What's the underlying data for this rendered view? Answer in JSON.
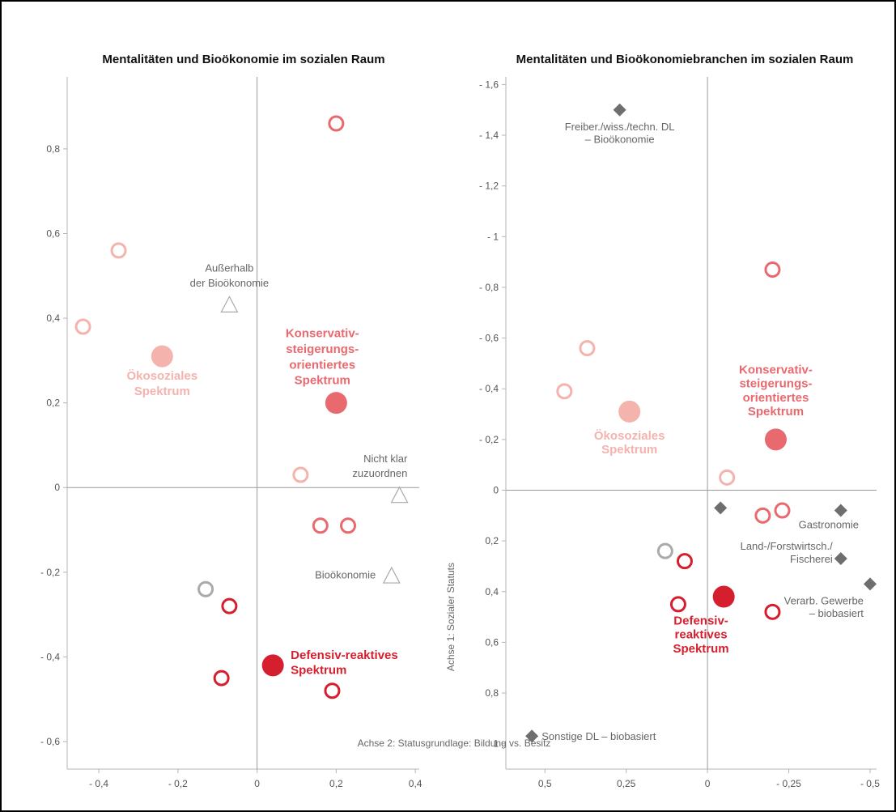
{
  "colors": {
    "light": "#f4b3ad",
    "mid": "#e86a6f",
    "dark": "#d61f2e",
    "gray": "#aaaaaa",
    "diamond": "#6e6e6e",
    "axis": "#9a9a9a",
    "frame": "#b4b4b4"
  },
  "chart_data": [
    {
      "type": "scatter",
      "title": "Mentalitäten und Bioökonomie im sozialen Raum",
      "xlim": [
        -0.48,
        0.41
      ],
      "ylim": [
        -0.665,
        0.97
      ],
      "x_ticks": [
        -0.4,
        -0.2,
        0,
        0.2,
        0.4
      ],
      "x_tick_labels": [
        "- 0,4",
        "- 0,2",
        "0",
        "0,2",
        "0,4"
      ],
      "y_ticks": [
        0.8,
        0.6,
        0.4,
        0.2,
        0,
        -0.2,
        -0.4,
        -0.6
      ],
      "y_tick_labels": [
        "0,8",
        "0,6",
        "0,4",
        "0,2",
        "0",
        "- 0,2",
        "- 0,4",
        "- 0,6"
      ],
      "points": [
        {
          "x": 0.2,
          "y": 0.86,
          "style": "ring",
          "color": "mid"
        },
        {
          "x": -0.35,
          "y": 0.56,
          "style": "ring",
          "color": "light"
        },
        {
          "x": -0.44,
          "y": 0.38,
          "style": "ring",
          "color": "light"
        },
        {
          "x": 0.11,
          "y": 0.03,
          "style": "ring",
          "color": "light"
        },
        {
          "x": 0.16,
          "y": -0.09,
          "style": "ring",
          "color": "mid"
        },
        {
          "x": 0.23,
          "y": -0.09,
          "style": "ring",
          "color": "mid"
        },
        {
          "x": -0.13,
          "y": -0.24,
          "style": "ring",
          "color": "gray"
        },
        {
          "x": -0.07,
          "y": -0.28,
          "style": "ring",
          "color": "dark"
        },
        {
          "x": -0.09,
          "y": -0.45,
          "style": "ring",
          "color": "dark"
        },
        {
          "x": 0.19,
          "y": -0.48,
          "style": "ring",
          "color": "dark"
        },
        {
          "x": -0.24,
          "y": 0.31,
          "style": "dot",
          "color": "light"
        },
        {
          "x": 0.2,
          "y": 0.2,
          "style": "dot",
          "color": "mid"
        },
        {
          "x": 0.04,
          "y": -0.42,
          "style": "dot",
          "color": "dark"
        },
        {
          "x": -0.07,
          "y": 0.43,
          "style": "triangle",
          "color": "gray"
        },
        {
          "x": 0.36,
          "y": -0.02,
          "style": "triangle",
          "color": "gray"
        },
        {
          "x": 0.34,
          "y": -0.21,
          "style": "triangle",
          "color": "gray"
        }
      ],
      "labels": [
        {
          "text": "Außerhalb",
          "x": -0.07,
          "y": 0.51,
          "anchor": "middle",
          "kind": "gray"
        },
        {
          "text": "der Bioökonomie",
          "x": -0.07,
          "y": 0.475,
          "anchor": "middle",
          "kind": "gray"
        },
        {
          "text": "Nicht klar",
          "x": 0.38,
          "y": 0.06,
          "anchor": "end",
          "kind": "gray"
        },
        {
          "text": "zuzuordnen",
          "x": 0.38,
          "y": 0.025,
          "anchor": "end",
          "kind": "gray"
        },
        {
          "text": "Bioökonomie",
          "x": 0.3,
          "y": -0.215,
          "anchor": "end",
          "kind": "gray"
        },
        {
          "text": "Konservativ-",
          "x": 0.165,
          "y": 0.355,
          "anchor": "middle",
          "kind": "mid"
        },
        {
          "text": "steigerungs-",
          "x": 0.165,
          "y": 0.318,
          "anchor": "middle",
          "kind": "mid"
        },
        {
          "text": "orientiertes",
          "x": 0.165,
          "y": 0.281,
          "anchor": "middle",
          "kind": "mid"
        },
        {
          "text": "Spektrum",
          "x": 0.165,
          "y": 0.244,
          "anchor": "middle",
          "kind": "mid"
        },
        {
          "text": "Ökosoziales",
          "x": -0.24,
          "y": 0.255,
          "anchor": "middle",
          "kind": "light"
        },
        {
          "text": "Spektrum",
          "x": -0.24,
          "y": 0.218,
          "anchor": "middle",
          "kind": "light"
        },
        {
          "text": "Defensiv-reaktives",
          "x": 0.085,
          "y": -0.405,
          "anchor": "start",
          "kind": "dark"
        },
        {
          "text": "Spektrum",
          "x": 0.085,
          "y": -0.44,
          "anchor": "start",
          "kind": "dark"
        }
      ]
    },
    {
      "type": "scatter",
      "title": "Mentalitäten und Bioökonomiebranchen im sozialen Raum",
      "ylabel": "Achse 1: Sozialer Statuts",
      "xlabel": "Achse 2: Statusgrundlage: Bildung vs. Besitz",
      "xlim": [
        0.62,
        -0.52
      ],
      "ylim": [
        1.1,
        -1.63
      ],
      "x_ticks": [
        0.5,
        0.25,
        0,
        -0.25,
        -0.5
      ],
      "x_tick_labels": [
        "0,5",
        "0,25",
        "0",
        "- 0,25",
        "- 0,5"
      ],
      "y_ticks": [
        -1.6,
        -1.4,
        -1.2,
        -1,
        -0.8,
        -0.6,
        -0.4,
        -0.2,
        0,
        0.2,
        0.4,
        0.6,
        0.8,
        1
      ],
      "y_tick_labels": [
        "- 1,6",
        "- 1,4",
        "- 1,2",
        "- 1",
        "- 0,8",
        "- 0,6",
        "- 0,4",
        "- 0,2",
        "0",
        "0,2",
        "0,4",
        "0,6",
        "0,8",
        "1"
      ],
      "points": [
        {
          "x": -0.2,
          "y": -0.87,
          "style": "ring",
          "color": "mid"
        },
        {
          "x": 0.37,
          "y": -0.56,
          "style": "ring",
          "color": "light"
        },
        {
          "x": 0.44,
          "y": -0.39,
          "style": "ring",
          "color": "light"
        },
        {
          "x": -0.06,
          "y": -0.05,
          "style": "ring",
          "color": "light"
        },
        {
          "x": -0.17,
          "y": 0.1,
          "style": "ring",
          "color": "mid"
        },
        {
          "x": -0.23,
          "y": 0.08,
          "style": "ring",
          "color": "mid"
        },
        {
          "x": 0.13,
          "y": 0.24,
          "style": "ring",
          "color": "gray"
        },
        {
          "x": 0.07,
          "y": 0.28,
          "style": "ring",
          "color": "dark"
        },
        {
          "x": 0.09,
          "y": 0.45,
          "style": "ring",
          "color": "dark"
        },
        {
          "x": -0.2,
          "y": 0.48,
          "style": "ring",
          "color": "dark"
        },
        {
          "x": 0.24,
          "y": -0.31,
          "style": "dot",
          "color": "light"
        },
        {
          "x": -0.21,
          "y": -0.2,
          "style": "dot",
          "color": "mid"
        },
        {
          "x": -0.05,
          "y": 0.42,
          "style": "dot",
          "color": "dark"
        },
        {
          "x": 0.27,
          "y": -1.5,
          "style": "diamond",
          "color": "diamond"
        },
        {
          "x": -0.04,
          "y": 0.07,
          "style": "diamond",
          "color": "diamond"
        },
        {
          "x": -0.41,
          "y": 0.08,
          "style": "diamond",
          "color": "diamond"
        },
        {
          "x": -0.41,
          "y": 0.27,
          "style": "diamond",
          "color": "diamond"
        },
        {
          "x": -0.5,
          "y": 0.37,
          "style": "diamond",
          "color": "diamond"
        },
        {
          "x": 0.54,
          "y": 0.97,
          "style": "diamond",
          "color": "diamond"
        }
      ],
      "labels": [
        {
          "text": "Freiber./wiss./techn. DL",
          "x": 0.27,
          "y": -1.42,
          "anchor": "middle",
          "kind": "gray"
        },
        {
          "text": "– Bioökonomie",
          "x": 0.27,
          "y": -1.37,
          "anchor": "middle",
          "kind": "gray"
        },
        {
          "text": "Gastronomie",
          "x": -0.28,
          "y": 0.15,
          "anchor": "start",
          "kind": "gray"
        },
        {
          "text": "Land-/Forstwirtsch./",
          "x": -0.385,
          "y": 0.235,
          "anchor": "end",
          "kind": "gray"
        },
        {
          "text": "Fischerei",
          "x": -0.385,
          "y": 0.285,
          "anchor": "end",
          "kind": "gray"
        },
        {
          "text": "Verarb. Gewerbe",
          "x": -0.48,
          "y": 0.45,
          "anchor": "end",
          "kind": "gray"
        },
        {
          "text": "– biobasiert",
          "x": -0.48,
          "y": 0.5,
          "anchor": "end",
          "kind": "gray"
        },
        {
          "text": "Sonstige DL – biobasiert",
          "x": 0.51,
          "y": 0.985,
          "anchor": "start",
          "kind": "gray"
        },
        {
          "text": "Konservativ-",
          "x": -0.21,
          "y": -0.46,
          "anchor": "middle",
          "kind": "mid"
        },
        {
          "text": "steigerungs-",
          "x": -0.21,
          "y": -0.405,
          "anchor": "middle",
          "kind": "mid"
        },
        {
          "text": "orientiertes",
          "x": -0.21,
          "y": -0.35,
          "anchor": "middle",
          "kind": "mid"
        },
        {
          "text": "Spektrum",
          "x": -0.21,
          "y": -0.295,
          "anchor": "middle",
          "kind": "mid"
        },
        {
          "text": "Ökosoziales",
          "x": 0.24,
          "y": -0.2,
          "anchor": "middle",
          "kind": "light"
        },
        {
          "text": "Spektrum",
          "x": 0.24,
          "y": -0.145,
          "anchor": "middle",
          "kind": "light"
        },
        {
          "text": "Defensiv-",
          "x": 0.02,
          "y": 0.53,
          "anchor": "middle",
          "kind": "dark"
        },
        {
          "text": "reaktives",
          "x": 0.02,
          "y": 0.585,
          "anchor": "middle",
          "kind": "dark"
        },
        {
          "text": "Spektrum",
          "x": 0.02,
          "y": 0.64,
          "anchor": "middle",
          "kind": "dark"
        }
      ]
    }
  ]
}
